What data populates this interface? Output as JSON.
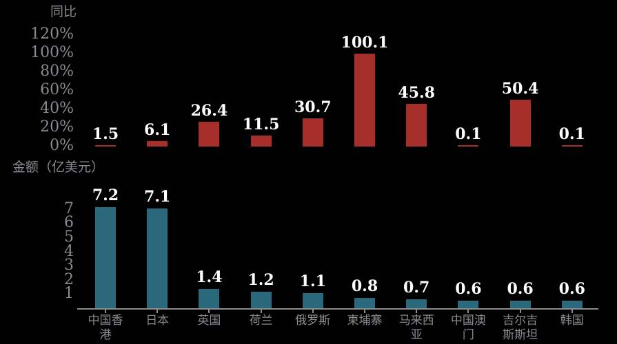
{
  "canvas": {
    "background": "#000000"
  },
  "colors": {
    "text": "#8A8A93",
    "axis_line": "#8C8C8C",
    "value_label_fill": "#FFFFFF",
    "value_label_outline": "#000000",
    "yoy_bar": "#A72F2B",
    "amount_bar": "#2A697C"
  },
  "chart_data": [
    {
      "type": "bar",
      "title": "同比",
      "categories": [
        "中国香港",
        "日本",
        "英国",
        "荷兰",
        "俄罗斯",
        "柬埔寨",
        "马来西亚",
        "中国澳门",
        "吉尔吉斯斯坦",
        "韩国"
      ],
      "values": [
        1.5,
        6.1,
        26.4,
        11.5,
        30.7,
        100.1,
        45.8,
        0.1,
        50.4,
        0.1
      ],
      "value_unit": "%",
      "yticks": [
        {
          "label": "120%",
          "value": 120
        },
        {
          "label": "100%",
          "value": 100
        },
        {
          "label": "80%",
          "value": 80
        },
        {
          "label": "60%",
          "value": 60
        },
        {
          "label": "40%",
          "value": 40
        },
        {
          "label": "20%",
          "value": 20
        },
        {
          "label": "0%",
          "value": 0
        }
      ],
      "ylim": [
        0,
        130
      ],
      "grid": false,
      "legend": "none",
      "bar_color": "#A72F2B",
      "show_x_labels": false,
      "show_x_axis_line": false
    },
    {
      "type": "bar",
      "title": "金额（亿美元）",
      "categories": [
        "中国香港",
        "日本",
        "英国",
        "荷兰",
        "俄罗斯",
        "柬埔寨",
        "马来西亚",
        "中国澳门",
        "吉尔吉斯斯坦",
        "韩国"
      ],
      "values": [
        7.2,
        7.1,
        1.4,
        1.2,
        1.1,
        0.8,
        0.7,
        0.6,
        0.6,
        0.6
      ],
      "value_unit": "亿美元",
      "yticks": [
        {
          "label": "7",
          "value": 7
        },
        {
          "label": "6",
          "value": 6
        },
        {
          "label": "5",
          "value": 5
        },
        {
          "label": "4",
          "value": 4
        },
        {
          "label": "3",
          "value": 3
        },
        {
          "label": "2",
          "value": 2
        },
        {
          "label": "1",
          "value": 1
        }
      ],
      "ylim": [
        0,
        7.3
      ],
      "grid": false,
      "legend": "none",
      "bar_color": "#2A697C",
      "show_x_labels": true,
      "show_x_axis_line": true
    }
  ]
}
